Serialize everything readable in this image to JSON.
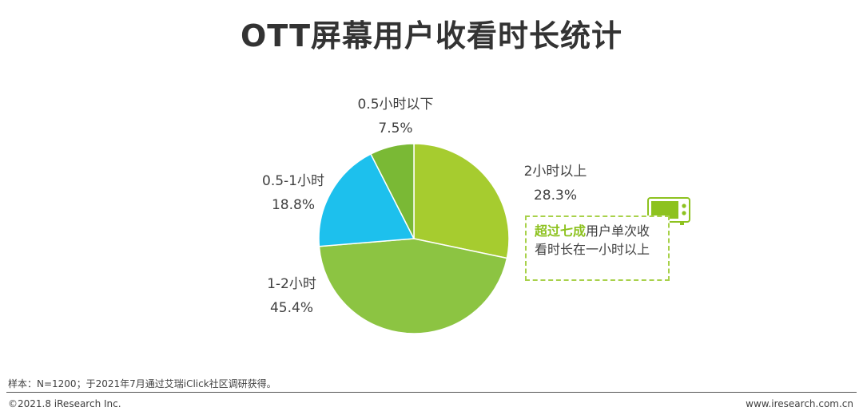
{
  "title": "OTT屏幕用户收看时长统计",
  "chart_data": {
    "type": "pie",
    "slices": [
      {
        "name": "2小时以上",
        "value": 28.3,
        "label": "28.3%",
        "color": "#a6cc2f"
      },
      {
        "name": "1-2小时",
        "value": 45.4,
        "label": "45.4%",
        "color": "#8cc442"
      },
      {
        "name": "0.5-1小时",
        "value": 18.8,
        "label": "18.8%",
        "color": "#1dc0ed"
      },
      {
        "name": "0.5小时以下",
        "value": 7.5,
        "label": "7.5%",
        "color": "#7ab935"
      }
    ]
  },
  "callout": {
    "highlight": "超过七成",
    "text": "用户单次收看时长在一小时以上"
  },
  "footer": {
    "note": "样本：N=1200；于2021年7月通过艾瑞iClick社区调研获得。",
    "copyright": "©2021.8 iResearch Inc.",
    "website": "www.iresearch.com.cn"
  },
  "icons": {
    "callout_icon": "tv-icon"
  }
}
